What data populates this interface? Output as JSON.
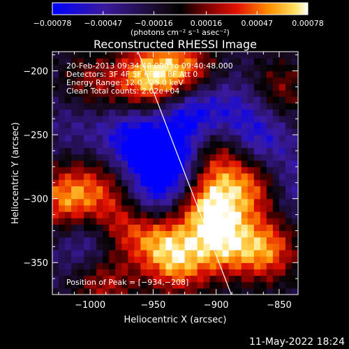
{
  "chart_data": {
    "type": "heatmap",
    "title": "Reconstructed RHESSI Image",
    "xlabel": "Heliocentric X (arcsec)",
    "ylabel": "Heliocentric Y (arcsec)",
    "xlim": [
      -1030,
      -835
    ],
    "ylim": [
      -375,
      -185
    ],
    "xticks": [
      -1000,
      -950,
      -900,
      -850
    ],
    "xtick_labels": [
      "−1000",
      "−950",
      "−900",
      "−850"
    ],
    "yticks": [
      -200,
      -250,
      -300,
      -350
    ],
    "ytick_labels": [
      "−200",
      "−250",
      "−300",
      "−350"
    ],
    "colorbar": {
      "range": [
        -0.00078,
        0.00078
      ],
      "ticks": [
        -0.00078,
        -0.00047,
        -0.00016,
        0.00016,
        0.00047,
        0.00078
      ],
      "tick_labels": [
        "−0.00078",
        "−0.00047",
        "−0.00016",
        "0.00016",
        "0.00047",
        "0.00078"
      ],
      "units_label": "(photons cm⁻² s⁻¹ asec⁻²)"
    },
    "annotations": [
      "20-Feb-2013 09:34:48.000 to 09:40:48.000",
      "Detectors: 3F 4F 5F 6F 7F 8F  Att 0",
      "Energy Range: 12.0 - 25.0 keV",
      "Clean     Total counts: 2.02e+04"
    ],
    "peak_label": "Position of Peak = [−934,−208]",
    "limb_line": [
      [
        -962,
        -185
      ],
      [
        -888,
        -375
      ]
    ],
    "blobs": [
      {
        "x": -1000,
        "y": -210,
        "amp": 0.0004
      },
      {
        "x": -955,
        "y": -205,
        "amp": 0.0008
      },
      {
        "x": -925,
        "y": -200,
        "amp": 0.0007
      },
      {
        "x": -1020,
        "y": -300,
        "amp": 0.0007
      },
      {
        "x": -990,
        "y": -290,
        "amp": 0.0004
      },
      {
        "x": -975,
        "y": -320,
        "amp": 0.0005
      },
      {
        "x": -945,
        "y": -330,
        "amp": 0.0006
      },
      {
        "x": -930,
        "y": -352,
        "amp": 0.0006
      },
      {
        "x": -905,
        "y": -305,
        "amp": 0.0008
      },
      {
        "x": -895,
        "y": -335,
        "amp": 0.0007
      },
      {
        "x": -900,
        "y": -268,
        "amp": 0.0005
      },
      {
        "x": -870,
        "y": -290,
        "amp": 0.0006
      },
      {
        "x": -860,
        "y": -340,
        "amp": 0.0007
      },
      {
        "x": -850,
        "y": -215,
        "amp": 0.0004
      },
      {
        "x": -990,
        "y": -365,
        "amp": 0.0005
      },
      {
        "x": -1010,
        "y": -240,
        "amp": -0.0002
      },
      {
        "x": -965,
        "y": -255,
        "amp": -0.0006
      },
      {
        "x": -935,
        "y": -270,
        "amp": -0.0007
      },
      {
        "x": -950,
        "y": -300,
        "amp": -0.0005
      },
      {
        "x": -1000,
        "y": -335,
        "amp": -0.0004
      },
      {
        "x": -920,
        "y": -230,
        "amp": -0.0006
      },
      {
        "x": -880,
        "y": -230,
        "amp": -0.0003
      },
      {
        "x": -865,
        "y": -255,
        "amp": -0.0004
      },
      {
        "x": -840,
        "y": -290,
        "amp": -0.0003
      }
    ]
  },
  "footer": {
    "timestamp": "11-May-2022 18:24"
  }
}
